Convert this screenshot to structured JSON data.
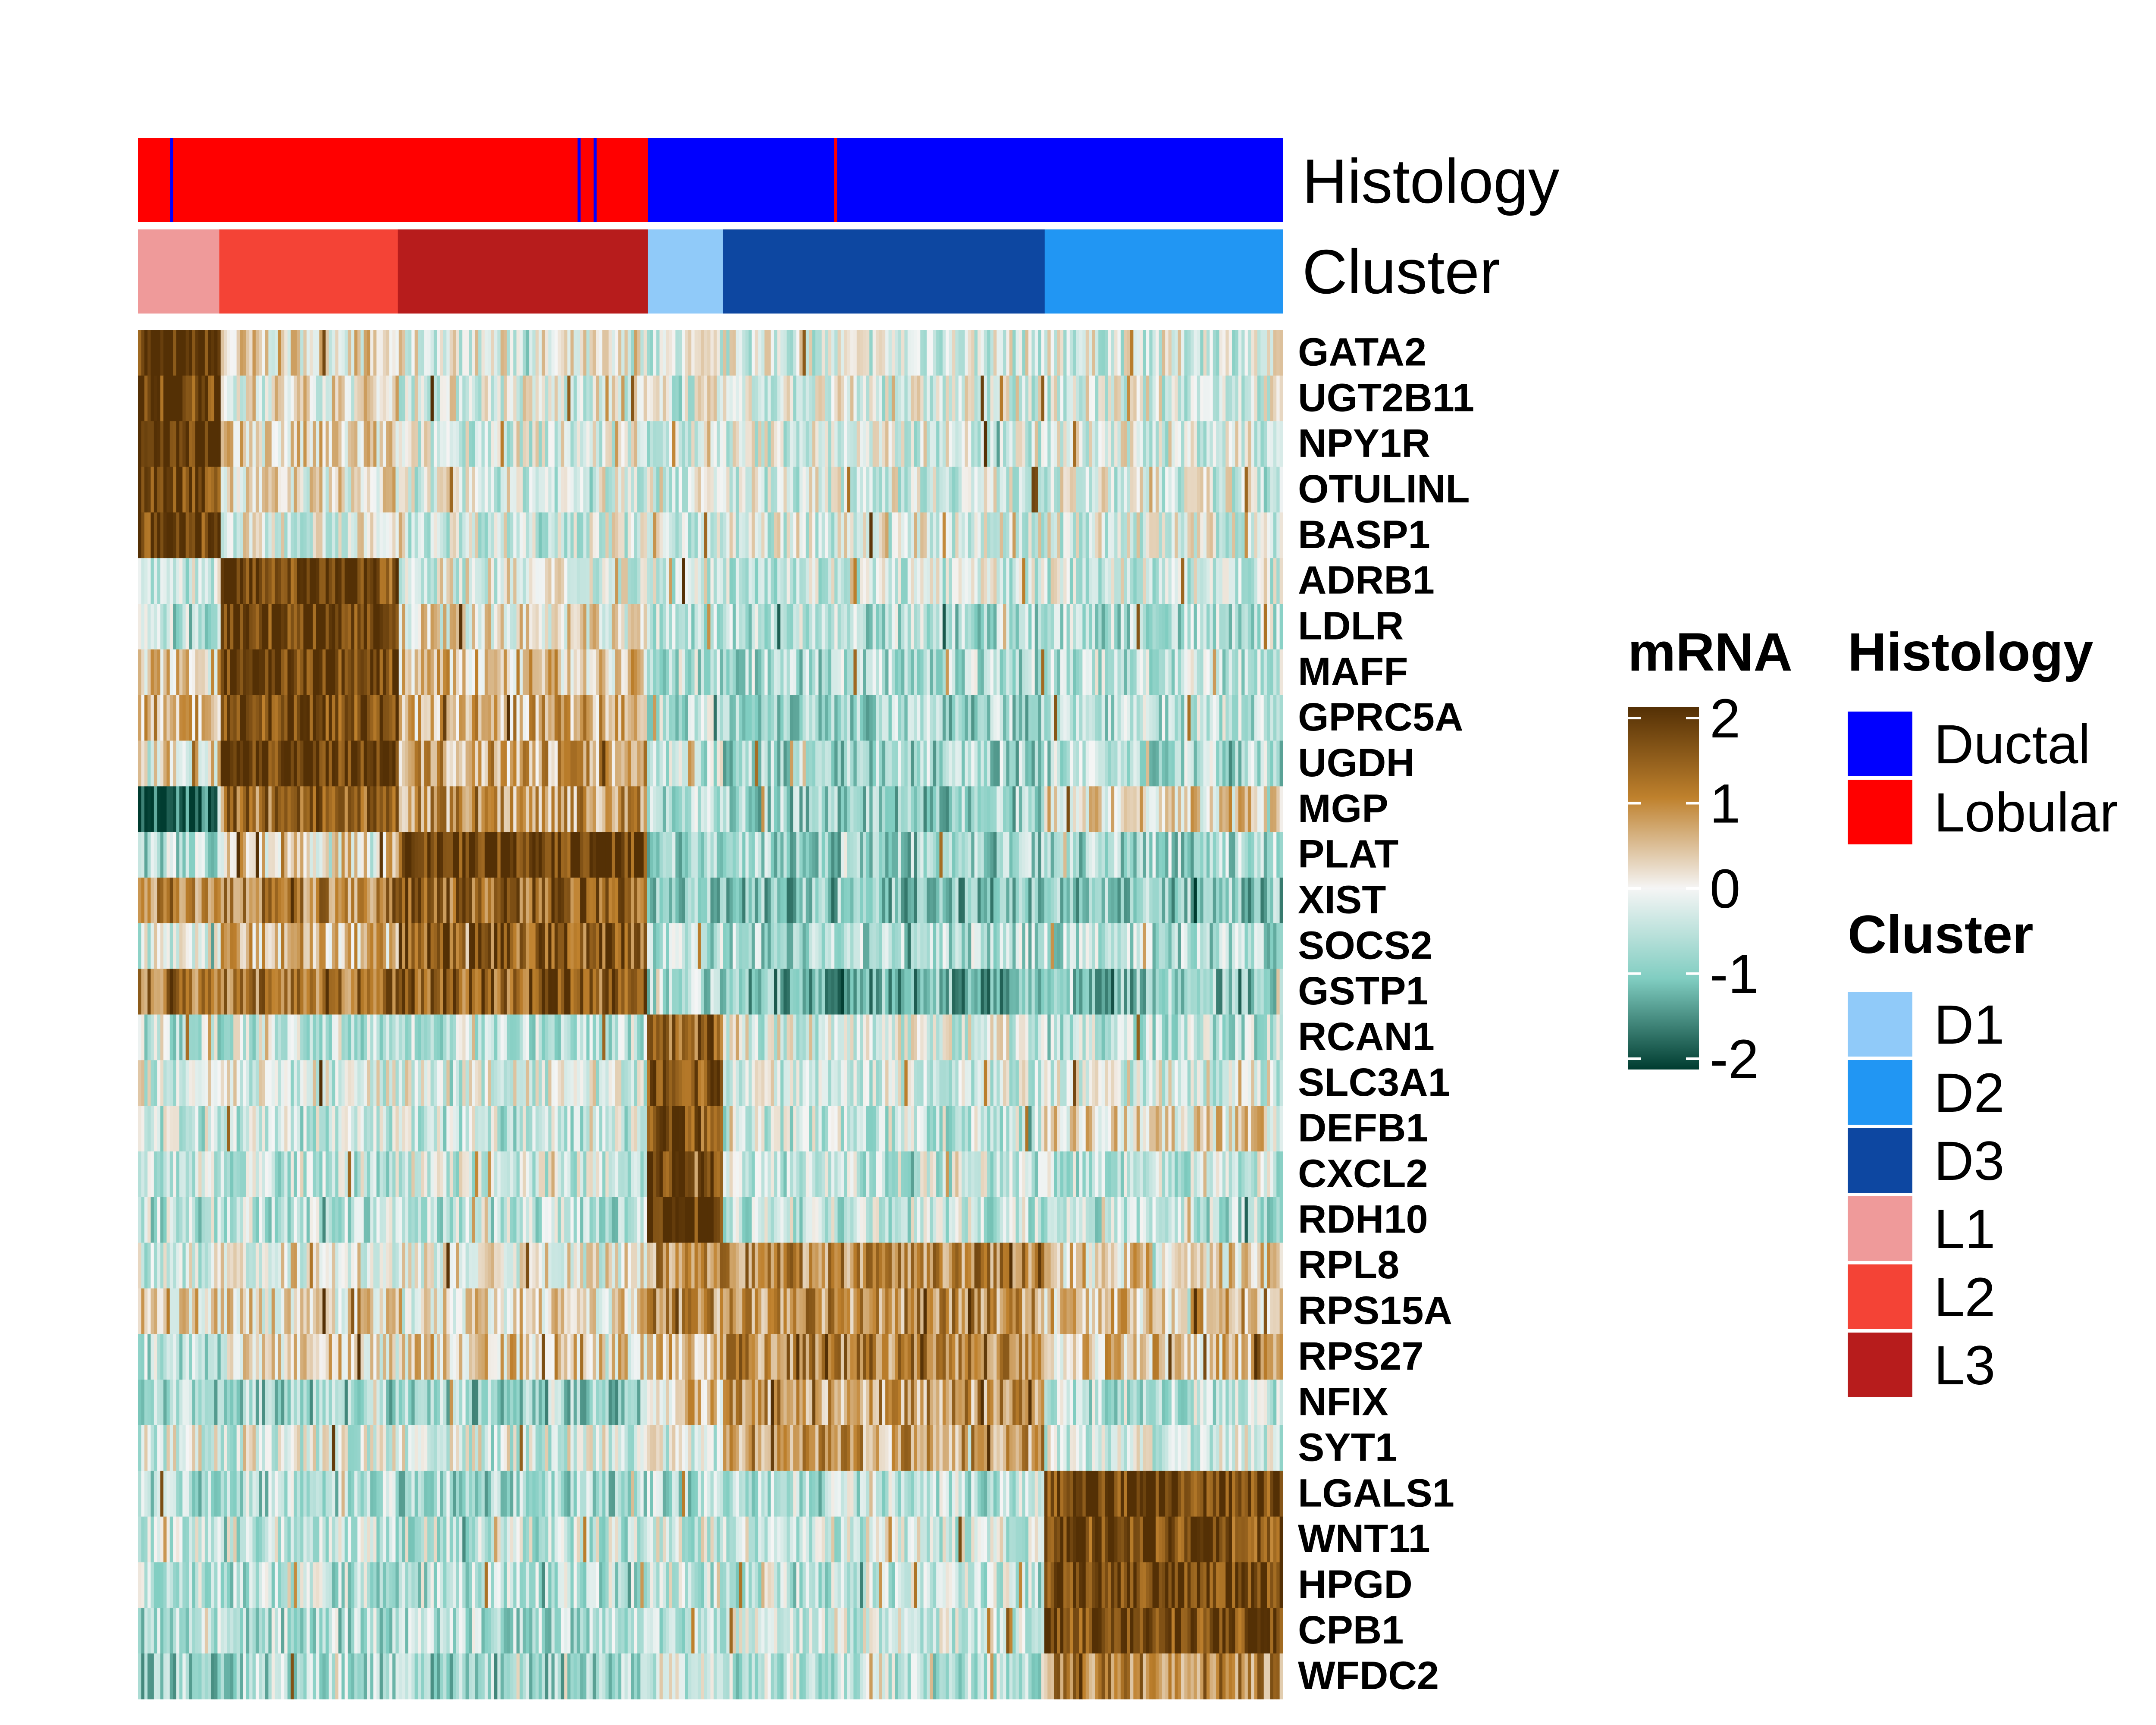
{
  "chart_data": {
    "type": "heatmap",
    "tracks": [
      {
        "label": "Histology",
        "legend_title": "Histology",
        "categories": [
          "Ductal",
          "Lobular"
        ],
        "colors": {
          "Ductal": "#0000ff",
          "Lobular": "#ff0000"
        },
        "segments": [
          {
            "start": 0.0,
            "end": 0.4455,
            "value": "Lobular"
          },
          {
            "start": 0.4455,
            "end": 1.0,
            "value": "Ductal"
          }
        ],
        "interleaved": [
          {
            "at": 0.028,
            "value": "Ductal"
          },
          {
            "at": 0.384,
            "value": "Ductal"
          },
          {
            "at": 0.398,
            "value": "Ductal"
          },
          {
            "at": 0.608,
            "value": "Lobular"
          }
        ]
      },
      {
        "label": "Cluster",
        "legend_title": "Cluster",
        "categories": [
          "D1",
          "D2",
          "D3",
          "L1",
          "L2",
          "L3"
        ],
        "colors": {
          "D1": "#90caf9",
          "D2": "#2196f3",
          "D3": "#0d47a1",
          "L1": "#ef9a9a",
          "L2": "#f44336",
          "L3": "#b71c1c"
        },
        "segments": [
          {
            "start": 0.0,
            "end": 0.071,
            "value": "L1"
          },
          {
            "start": 0.071,
            "end": 0.227,
            "value": "L2"
          },
          {
            "start": 0.227,
            "end": 0.4455,
            "value": "L3"
          },
          {
            "start": 0.4455,
            "end": 0.511,
            "value": "D1"
          },
          {
            "start": 0.511,
            "end": 0.792,
            "value": "D3"
          },
          {
            "start": 0.792,
            "end": 1.0,
            "value": "D2"
          }
        ]
      }
    ],
    "genes": [
      "GATA2",
      "UGT2B11",
      "NPY1R",
      "OTULINL",
      "BASP1",
      "ADRB1",
      "LDLR",
      "MAFF",
      "GPRC5A",
      "UGDH",
      "MGP",
      "PLAT",
      "XIST",
      "SOCS2",
      "GSTP1",
      "RCAN1",
      "SLC3A1",
      "DEFB1",
      "CXCL2",
      "RDH10",
      "RPL8",
      "RPS15A",
      "RPS27",
      "NFIX",
      "SYT1",
      "LGALS1",
      "WNT11",
      "HPGD",
      "CPB1",
      "WFDC2"
    ],
    "cluster_order": [
      "L1",
      "L2",
      "L3",
      "D1",
      "D3",
      "D2"
    ],
    "mean_expression": [
      [
        2.0,
        0.2,
        -0.1,
        -0.2,
        -0.2,
        -0.2
      ],
      [
        1.8,
        0.1,
        -0.1,
        -0.2,
        -0.2,
        -0.2
      ],
      [
        2.0,
        0.2,
        -0.2,
        -0.3,
        -0.2,
        -0.2
      ],
      [
        1.8,
        0.1,
        -0.2,
        -0.2,
        -0.2,
        -0.2
      ],
      [
        1.7,
        -0.1,
        -0.2,
        -0.2,
        -0.2,
        -0.2
      ],
      [
        -0.3,
        1.8,
        -0.1,
        -0.3,
        -0.3,
        -0.3
      ],
      [
        -0.6,
        1.8,
        0.1,
        -0.5,
        -0.6,
        -0.6
      ],
      [
        0.3,
        1.7,
        0.4,
        -0.5,
        -0.6,
        -0.5
      ],
      [
        0.6,
        1.7,
        0.6,
        -0.5,
        -0.7,
        -0.5
      ],
      [
        0.2,
        1.9,
        0.7,
        -0.4,
        -0.7,
        -0.6
      ],
      [
        -1.8,
        1.2,
        0.8,
        -0.5,
        -0.8,
        0.3
      ],
      [
        -0.6,
        0.3,
        1.8,
        -0.7,
        -0.8,
        -0.7
      ],
      [
        1.0,
        1.0,
        1.3,
        -1.0,
        -1.0,
        -0.9
      ],
      [
        -0.2,
        0.5,
        1.4,
        -0.6,
        -0.6,
        -0.6
      ],
      [
        1.2,
        1.2,
        1.4,
        -0.7,
        -1.1,
        -0.9
      ],
      [
        -0.5,
        -0.4,
        -0.4,
        1.4,
        -0.2,
        -0.5
      ],
      [
        -0.2,
        -0.2,
        -0.2,
        1.6,
        -0.2,
        -0.2
      ],
      [
        -0.4,
        -0.4,
        -0.4,
        1.5,
        -0.4,
        0.2
      ],
      [
        -0.4,
        -0.4,
        -0.3,
        1.8,
        -0.4,
        -0.4
      ],
      [
        -0.5,
        -0.5,
        -0.5,
        1.9,
        -0.4,
        -0.5
      ],
      [
        -0.3,
        0.1,
        0.0,
        0.9,
        1.0,
        0.3
      ],
      [
        0.3,
        0.2,
        0.2,
        0.9,
        0.9,
        0.4
      ],
      [
        -0.5,
        0.2,
        0.3,
        0.6,
        1.0,
        0.4
      ],
      [
        -0.8,
        -0.8,
        -0.9,
        0.4,
        0.8,
        -0.5
      ],
      [
        -0.2,
        -0.2,
        -0.2,
        -0.2,
        0.8,
        -0.3
      ],
      [
        -0.6,
        -0.6,
        -0.7,
        -0.6,
        -0.5,
        1.7
      ],
      [
        -0.4,
        -0.4,
        -0.4,
        -0.3,
        -0.3,
        1.6
      ],
      [
        -0.5,
        -0.5,
        -0.5,
        -0.2,
        -0.4,
        1.8
      ],
      [
        -0.6,
        -0.6,
        -0.6,
        -0.4,
        -0.3,
        1.7
      ],
      [
        -0.8,
        -0.6,
        -0.8,
        -0.3,
        -0.5,
        1.0
      ]
    ],
    "colorbar": {
      "title": "mRNA",
      "range": [
        -2,
        2
      ],
      "ticks": [
        "2",
        "1",
        "0",
        "-1",
        "-2"
      ],
      "stops": [
        {
          "value": 2,
          "color": "#543005"
        },
        {
          "value": 1,
          "color": "#bf812d"
        },
        {
          "value": 0,
          "color": "#f5f5f5"
        },
        {
          "value": -1,
          "color": "#80cdc1"
        },
        {
          "value": -2,
          "color": "#003c30"
        }
      ]
    }
  }
}
